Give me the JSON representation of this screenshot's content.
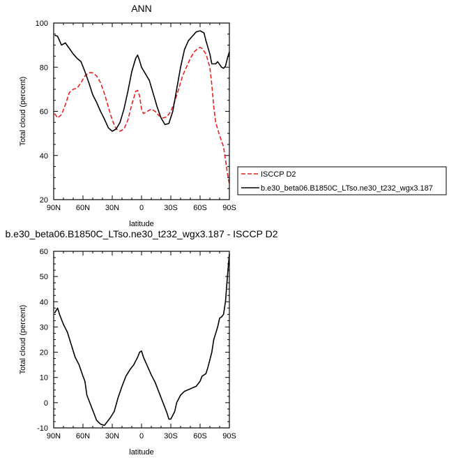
{
  "chart_data": [
    {
      "type": "line",
      "title": "ANN",
      "xlabel": "latitude",
      "ylabel": "Total cloud (percent)",
      "xlim": [
        90,
        -90
      ],
      "ylim": [
        20,
        100
      ],
      "x_ticks": [
        90,
        60,
        30,
        0,
        -30,
        -60,
        -90
      ],
      "x_tick_labels": [
        "90N",
        "60N",
        "30N",
        "0",
        "30S",
        "60S",
        "90S"
      ],
      "y_ticks": [
        20,
        40,
        60,
        80,
        100
      ],
      "y_tick_labels": [
        "20",
        "40",
        "60",
        "80",
        "100"
      ],
      "legend_position": "right",
      "series": [
        {
          "name": "ISCCP D2",
          "color": "#e8211c",
          "dash": "dashed",
          "points": [
            [
              89,
              59
            ],
            [
              86,
              57
            ],
            [
              82,
              58.5
            ],
            [
              78,
              63
            ],
            [
              74,
              68.5
            ],
            [
              70,
              70
            ],
            [
              66,
              70.5
            ],
            [
              62,
              73
            ],
            [
              58,
              76
            ],
            [
              54,
              77.5
            ],
            [
              50,
              77.5
            ],
            [
              46,
              76
            ],
            [
              42,
              73
            ],
            [
              38,
              68
            ],
            [
              34,
              62
            ],
            [
              30,
              56
            ],
            [
              26,
              52
            ],
            [
              22,
              51
            ],
            [
              18,
              52
            ],
            [
              14,
              56
            ],
            [
              10,
              63
            ],
            [
              6,
              69
            ],
            [
              4,
              69.5
            ],
            [
              2,
              67
            ],
            [
              0,
              61
            ],
            [
              -2,
              59
            ],
            [
              -6,
              60
            ],
            [
              -10,
              61
            ],
            [
              -14,
              60
            ],
            [
              -18,
              58
            ],
            [
              -22,
              57
            ],
            [
              -26,
              57.5
            ],
            [
              -30,
              60
            ],
            [
              -34,
              64.5
            ],
            [
              -38,
              70
            ],
            [
              -42,
              76
            ],
            [
              -46,
              80
            ],
            [
              -50,
              84
            ],
            [
              -54,
              87
            ],
            [
              -58,
              88.5
            ],
            [
              -60,
              89
            ],
            [
              -62,
              88.5
            ],
            [
              -66,
              86
            ],
            [
              -70,
              80
            ],
            [
              -72,
              72
            ],
            [
              -74,
              62
            ],
            [
              -76,
              55
            ],
            [
              -80,
              49
            ],
            [
              -84,
              44
            ],
            [
              -86,
              38
            ],
            [
              -88,
              32
            ],
            [
              -90,
              27
            ]
          ]
        },
        {
          "name": "b.e30_beta06.B1850C_LTso.ne30_t232_wgx3.187",
          "color": "#000000",
          "dash": "solid",
          "points": [
            [
              89,
              94.5
            ],
            [
              86,
              94
            ],
            [
              82,
              90
            ],
            [
              78,
              91
            ],
            [
              74,
              88.5
            ],
            [
              70,
              86
            ],
            [
              66,
              84
            ],
            [
              62,
              82.5
            ],
            [
              58,
              78
            ],
            [
              54,
              73
            ],
            [
              50,
              67.5
            ],
            [
              46,
              64
            ],
            [
              42,
              60
            ],
            [
              38,
              56.5
            ],
            [
              34,
              52.5
            ],
            [
              30,
              51
            ],
            [
              26,
              52
            ],
            [
              22,
              55
            ],
            [
              18,
              61
            ],
            [
              14,
              69
            ],
            [
              10,
              78
            ],
            [
              6,
              84
            ],
            [
              4,
              85.5
            ],
            [
              2,
              83
            ],
            [
              0,
              80
            ],
            [
              -4,
              77
            ],
            [
              -8,
              74
            ],
            [
              -12,
              68
            ],
            [
              -16,
              62
            ],
            [
              -20,
              57
            ],
            [
              -24,
              54
            ],
            [
              -28,
              54.5
            ],
            [
              -32,
              60
            ],
            [
              -36,
              70
            ],
            [
              -40,
              80
            ],
            [
              -44,
              88
            ],
            [
              -48,
              92
            ],
            [
              -52,
              94
            ],
            [
              -56,
              96
            ],
            [
              -60,
              96.5
            ],
            [
              -64,
              95.5
            ],
            [
              -66,
              92
            ],
            [
              -70,
              86
            ],
            [
              -72,
              81.5
            ],
            [
              -76,
              81.5
            ],
            [
              -78,
              82.5
            ],
            [
              -82,
              80
            ],
            [
              -84,
              79.5
            ],
            [
              -86,
              80.5
            ],
            [
              -88,
              84
            ],
            [
              -90,
              87
            ]
          ]
        }
      ]
    },
    {
      "type": "line",
      "title": "b.e30_beta06.B1850C_LTso.ne30_t232_wgx3.187 - ISCCP D2",
      "xlabel": "latitude",
      "ylabel": "Total cloud (percent)",
      "xlim": [
        90,
        -90
      ],
      "ylim": [
        -10,
        60
      ],
      "x_ticks": [
        90,
        60,
        30,
        0,
        -30,
        -60,
        -90
      ],
      "x_tick_labels": [
        "90N",
        "60N",
        "30N",
        "0",
        "30S",
        "60S",
        "90S"
      ],
      "y_ticks": [
        -10,
        0,
        10,
        20,
        30,
        40,
        50,
        60
      ],
      "y_tick_labels": [
        "-10",
        "0",
        "10",
        "20",
        "30",
        "40",
        "50",
        "60"
      ],
      "series": [
        {
          "color": "#000000",
          "dash": "solid",
          "points": [
            [
              89,
              35.5
            ],
            [
              86,
              37.5
            ],
            [
              84,
              35
            ],
            [
              80,
              31
            ],
            [
              76,
              28
            ],
            [
              72,
              23
            ],
            [
              68,
              18
            ],
            [
              64,
              15
            ],
            [
              60,
              10.5
            ],
            [
              58,
              8.5
            ],
            [
              56,
              3
            ],
            [
              52,
              -1
            ],
            [
              50,
              -3
            ],
            [
              48,
              -5
            ],
            [
              46,
              -7
            ],
            [
              42,
              -8.5
            ],
            [
              38,
              -9
            ],
            [
              36,
              -8
            ],
            [
              32,
              -6
            ],
            [
              28,
              -3.5
            ],
            [
              24,
              2
            ],
            [
              20,
              6.5
            ],
            [
              16,
              10.5
            ],
            [
              12,
              13
            ],
            [
              8,
              15
            ],
            [
              4,
              18
            ],
            [
              2,
              20
            ],
            [
              0,
              20.5
            ],
            [
              -2,
              18
            ],
            [
              -6,
              14.5
            ],
            [
              -10,
              11
            ],
            [
              -14,
              8
            ],
            [
              -18,
              4
            ],
            [
              -22,
              0
            ],
            [
              -26,
              -4
            ],
            [
              -28,
              -6.5
            ],
            [
              -30,
              -6.5
            ],
            [
              -34,
              -3.5
            ],
            [
              -36,
              0
            ],
            [
              -40,
              3
            ],
            [
              -44,
              4.5
            ],
            [
              -50,
              5.5
            ],
            [
              -56,
              6.5
            ],
            [
              -60,
              8.5
            ],
            [
              -62,
              10.5
            ],
            [
              -66,
              11.5
            ],
            [
              -68,
              14
            ],
            [
              -72,
              20
            ],
            [
              -74,
              25
            ],
            [
              -78,
              30
            ],
            [
              -80,
              33.5
            ],
            [
              -82,
              34
            ],
            [
              -84,
              35
            ],
            [
              -86,
              40
            ],
            [
              -88,
              50
            ],
            [
              -90,
              59
            ]
          ]
        }
      ]
    }
  ]
}
